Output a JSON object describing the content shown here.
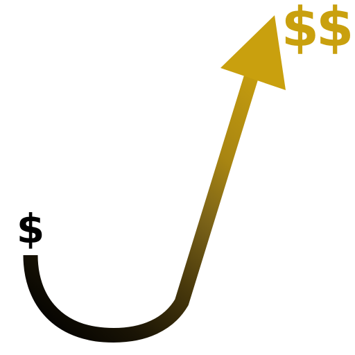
{
  "labels": {
    "start_symbol": "$",
    "end_symbol": "$$"
  },
  "colors": {
    "background": "#ffffff",
    "start_color": "#000000",
    "mid_color": "#6b5410",
    "end_color": "#c9a00e"
  }
}
